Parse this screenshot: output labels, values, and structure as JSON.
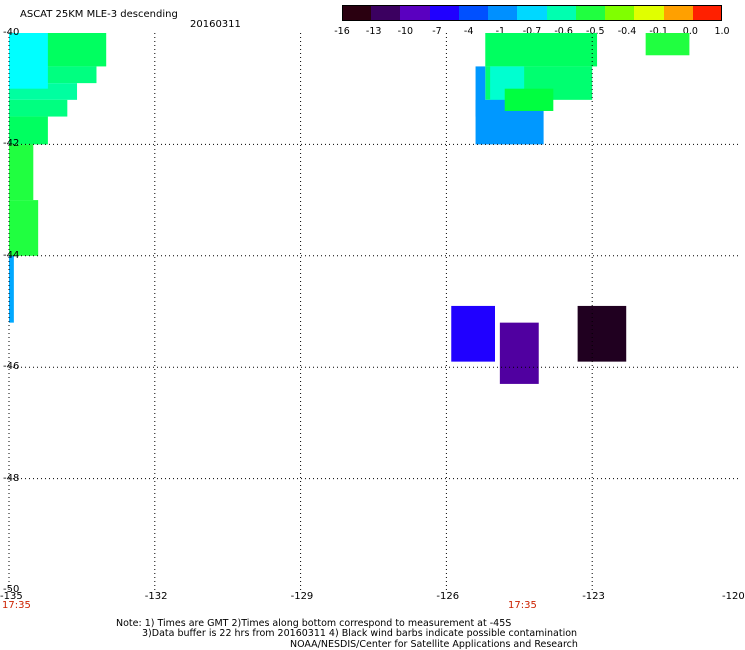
{
  "title": "ASCAT 25KM MLE-3 descending",
  "date": "20160311",
  "colorbar": {
    "labels": [
      "-16",
      "-13",
      "-10",
      "-7",
      "-4",
      "-1",
      "-0.7",
      "-0.6",
      "-0.5",
      "-0.4",
      "-0.1",
      "0.0",
      "1.0"
    ],
    "colors": [
      "#2a0010",
      "#3b0060",
      "#5a00c0",
      "#2000ff",
      "#0050ff",
      "#0090ff",
      "#00d8ff",
      "#00ffb0",
      "#20ff40",
      "#80ff00",
      "#e0ff00",
      "#ffa000",
      "#ff2000"
    ]
  },
  "lat_labels": [
    "-40",
    "-42",
    "-44",
    "-46",
    "-48",
    "-50"
  ],
  "lon_labels": [
    "-135",
    "-132",
    "-129",
    "-126",
    "-123",
    "-120"
  ],
  "time_labels": [
    "17:35",
    "17:35"
  ],
  "notes": {
    "line1": "Note: 1) Times are GMT 2)Times along bottom correspond to measurement at -45S",
    "line2": "3)Data buffer is 22 hrs from 20160311 4) Black wind barbs indicate possible contamination",
    "line3": "NOAA/NESDIS/Center for Satellite Applications and Research"
  },
  "map_data": {
    "lon_range": [
      -135,
      -120
    ],
    "lat_range": [
      -50,
      -40
    ],
    "cells": [
      {
        "lon": [
          -135,
          -133
        ],
        "lat": [
          -40.6,
          -40
        ],
        "color": "#00ff60"
      },
      {
        "lon": [
          -135,
          -133.2
        ],
        "lat": [
          -40.9,
          -40.6
        ],
        "color": "#00ff80"
      },
      {
        "lon": [
          -135,
          -133.6
        ],
        "lat": [
          -41.2,
          -40.9
        ],
        "color": "#00ffa0"
      },
      {
        "lon": [
          -135,
          -133.8
        ],
        "lat": [
          -41.5,
          -41.2
        ],
        "color": "#00ff80"
      },
      {
        "lon": [
          -135,
          -134.2
        ],
        "lat": [
          -42.0,
          -41.5
        ],
        "color": "#00ff60"
      },
      {
        "lon": [
          -135,
          -134.5
        ],
        "lat": [
          -43.0,
          -42.0
        ],
        "color": "#20ff40"
      },
      {
        "lon": [
          -135,
          -134.4
        ],
        "lat": [
          -44.0,
          -43.0
        ],
        "color": "#20ff40"
      },
      {
        "lon": [
          -135,
          -134.2
        ],
        "lat": [
          -41.0,
          -40
        ],
        "color": "#00ffff"
      },
      {
        "lon": [
          -135,
          -134.9
        ],
        "lat": [
          -45.2,
          -44.0
        ],
        "color": "#00a8ff"
      },
      {
        "lon": [
          -125.2,
          -122.9
        ],
        "lat": [
          -40.6,
          -40
        ],
        "color": "#00ff60"
      },
      {
        "lon": [
          -125.2,
          -123.0
        ],
        "lat": [
          -41.2,
          -40.6
        ],
        "color": "#00ff70"
      },
      {
        "lon": [
          -125.1,
          -124.4
        ],
        "lat": [
          -41.5,
          -40.6
        ],
        "color": "#00ffd0"
      },
      {
        "lon": [
          -125.4,
          -124.0
        ],
        "lat": [
          -42.0,
          -41.2
        ],
        "color": "#0098ff"
      },
      {
        "lon": [
          -125.4,
          -125.2
        ],
        "lat": [
          -41.5,
          -40.6
        ],
        "color": "#0098ff"
      },
      {
        "lon": [
          -124.8,
          -123.8
        ],
        "lat": [
          -41.4,
          -41.0
        ],
        "color": "#00ff40"
      },
      {
        "lon": [
          -121.9,
          -121.0
        ],
        "lat": [
          -40.4,
          -40.0
        ],
        "color": "#20ff40"
      },
      {
        "lon": [
          -125.9,
          -125.0
        ],
        "lat": [
          -45.9,
          -44.9
        ],
        "color": "#2000ff"
      },
      {
        "lon": [
          -124.9,
          -124.1
        ],
        "lat": [
          -46.3,
          -45.2
        ],
        "color": "#5000a0"
      },
      {
        "lon": [
          -123.3,
          -122.3
        ],
        "lat": [
          -45.9,
          -44.9
        ],
        "color": "#200020"
      }
    ]
  }
}
